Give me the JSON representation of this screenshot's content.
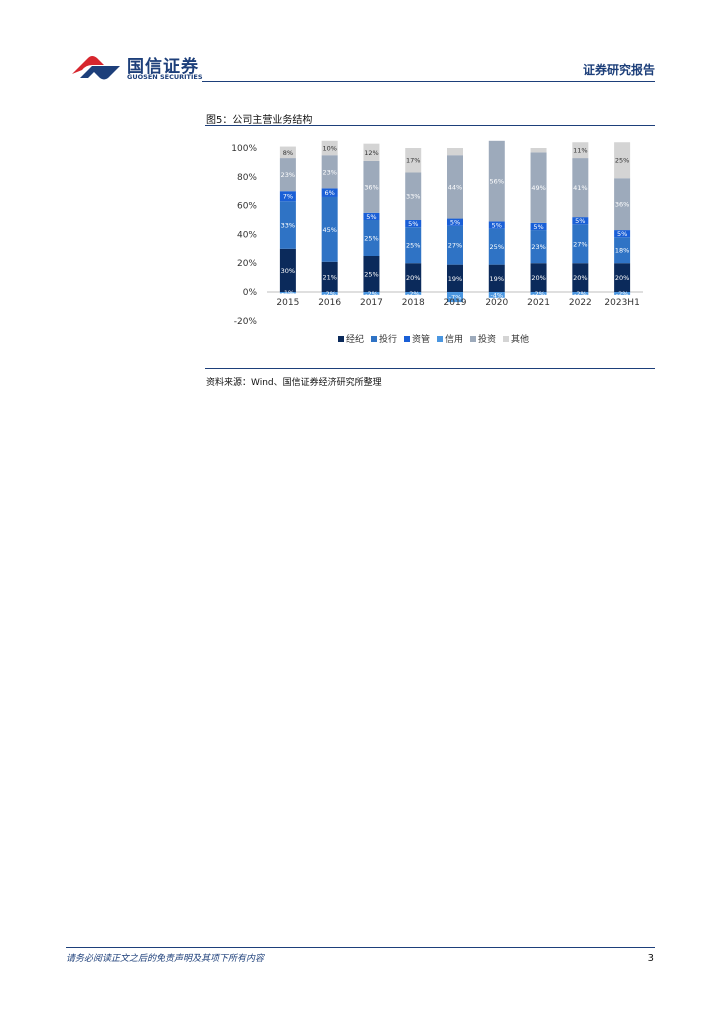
{
  "header": {
    "logo_cn": "国信证券",
    "logo_en": "GUOSEN SECURITIES",
    "report_type": "证券研究报告"
  },
  "figure": {
    "title": "图5：公司主营业务结构",
    "source": "资料来源：Wind、国信证券经济研究所整理"
  },
  "footer": {
    "disclaimer": "请务必阅读正文之后的免责声明及其项下所有内容",
    "page_number": "3"
  },
  "colors": {
    "brand": "#1d3f7a",
    "logo_red": "#d7262e"
  },
  "chart_data": {
    "type": "bar",
    "stacked": true,
    "categories": [
      "2015",
      "2016",
      "2017",
      "2018",
      "2019",
      "2020",
      "2021",
      "2022",
      "2023H1"
    ],
    "ylim": [
      -20,
      100
    ],
    "y_ticks": [
      "100%",
      "80%",
      "60%",
      "40%",
      "20%",
      "0%",
      "-20%"
    ],
    "legend_position": "bottom",
    "series": [
      {
        "name": "经纪",
        "color": "#0b2a5b",
        "values": [
          30,
          21,
          25,
          20,
          19,
          19,
          20,
          20,
          20
        ],
        "labels": [
          "30%",
          "21%",
          "25%",
          "20%",
          "19%",
          "19%",
          "20%",
          "20%",
          "20%"
        ]
      },
      {
        "name": "投行",
        "color": "#2f73c5",
        "values": [
          33,
          45,
          25,
          25,
          27,
          25,
          23,
          27,
          18
        ],
        "labels": [
          "33%",
          "45%",
          "25%",
          "25%",
          "27%",
          "25%",
          "23%",
          "27%",
          "18%"
        ]
      },
      {
        "name": "资管",
        "color": "#1a5fd6",
        "values": [
          7,
          6,
          5,
          5,
          5,
          5,
          5,
          5,
          5
        ],
        "labels": [
          "7%",
          "6%",
          "5%",
          "5%",
          "5%",
          "5%",
          "5%",
          "5%",
          "5%"
        ]
      },
      {
        "name": "信用",
        "color": "#4a96e0",
        "values": [
          -1,
          -2,
          -2,
          -2,
          -7,
          -4,
          -2,
          -2,
          -2
        ],
        "labels": [
          "-1%",
          "-2%",
          "-2%",
          "-2%",
          "-7%",
          "-4%",
          "-2%",
          "-2%",
          "-2%"
        ]
      },
      {
        "name": "投资",
        "color": "#9daabb",
        "values": [
          23,
          23,
          36,
          33,
          44,
          56,
          49,
          41,
          36
        ],
        "labels": [
          "23%",
          "23%",
          "36%",
          "33%",
          "44%",
          "56%",
          "49%",
          "41%",
          "36%"
        ]
      },
      {
        "name": "其他",
        "color": "#d4d4d4",
        "values": [
          8,
          10,
          12,
          17,
          5,
          0,
          3,
          11,
          25
        ],
        "labels": [
          "8%",
          "10%",
          "12%",
          "17%",
          "",
          "",
          "",
          "11%",
          "25%"
        ]
      }
    ]
  }
}
